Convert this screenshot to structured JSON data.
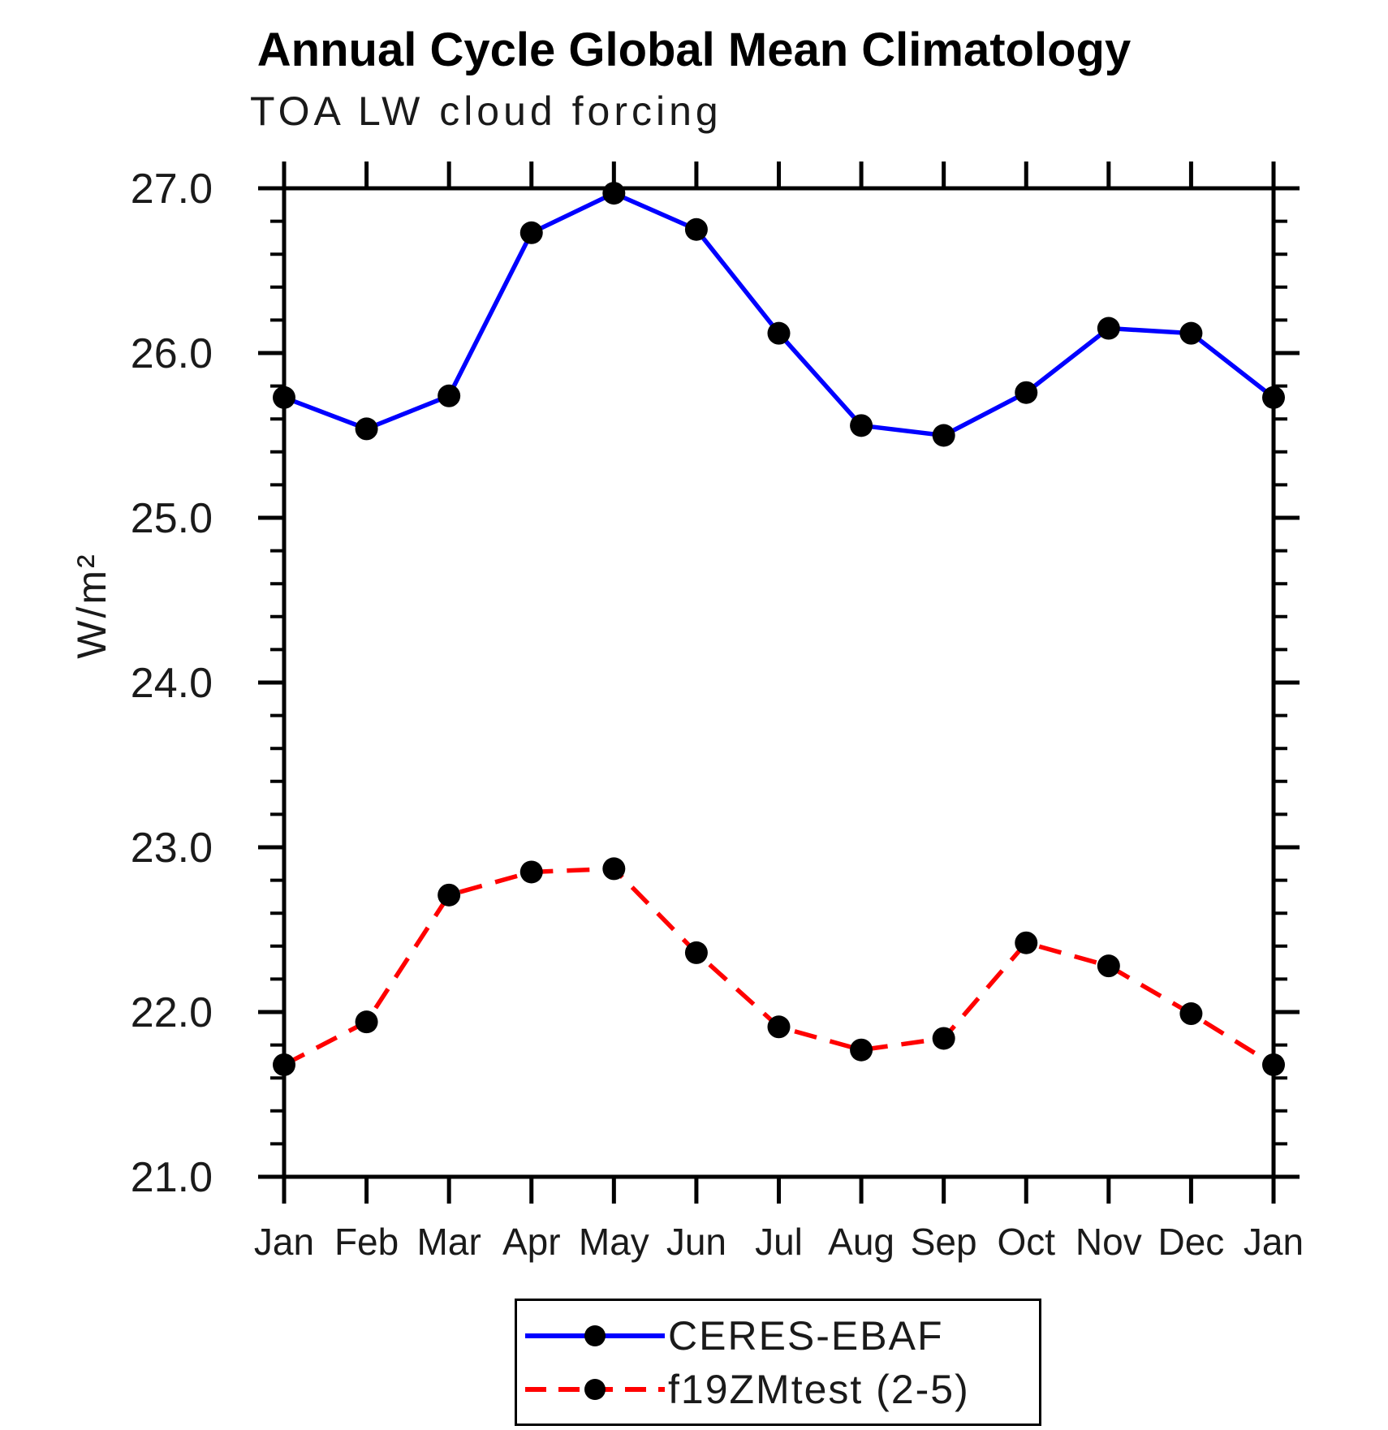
{
  "chart_data": {
    "type": "line",
    "title": "Annual Cycle Global Mean Climatology",
    "subtitle": "TOA LW cloud forcing",
    "ylabel": "W/m²",
    "x_categories": [
      "Jan",
      "Feb",
      "Mar",
      "Apr",
      "May",
      "Jun",
      "Jul",
      "Aug",
      "Sep",
      "Oct",
      "Nov",
      "Dec",
      "Jan"
    ],
    "ylim": [
      21.0,
      27.0
    ],
    "y_major_tick_labels": [
      "21.0",
      "22.0",
      "23.0",
      "24.0",
      "25.0",
      "26.0",
      "27.0"
    ],
    "y_minor_step": 0.2,
    "grid": false,
    "legend_position": "bottom-center",
    "axis_color": "#000000",
    "marker_color": "#000000",
    "series": [
      {
        "name": "CERES-EBAF",
        "color": "#0000ff",
        "line_style": "solid",
        "marker": "filled-circle",
        "values": [
          25.73,
          25.54,
          25.74,
          26.73,
          26.97,
          26.75,
          26.12,
          25.56,
          25.5,
          25.76,
          26.15,
          26.12,
          25.73
        ]
      },
      {
        "name": "f19ZMtest (2-5)",
        "color": "#ff0000",
        "line_style": "dashed",
        "marker": "filled-circle",
        "values": [
          21.68,
          21.94,
          22.71,
          22.85,
          22.87,
          22.36,
          21.91,
          21.77,
          21.84,
          22.42,
          22.28,
          21.99,
          21.68
        ]
      }
    ]
  }
}
